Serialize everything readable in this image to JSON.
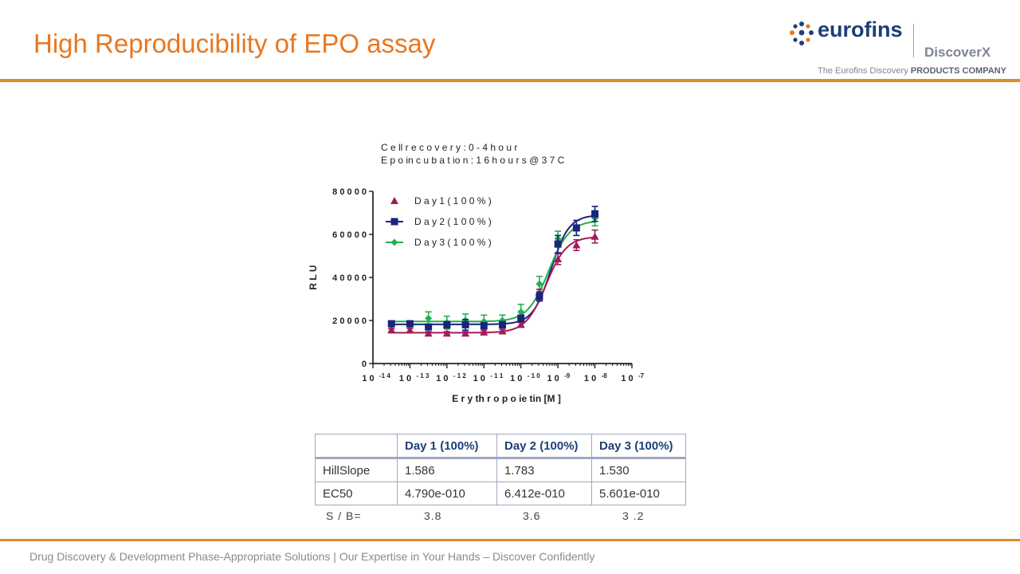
{
  "slide": {
    "title": "High Reproducibility of EPO assay",
    "footer": "Drug Discovery & Development Phase-Appropriate Solutions | Our Expertise in Your Hands – Discover Confidently"
  },
  "logo": {
    "wordmark": "eurofins",
    "sub": "DiscoverX",
    "tagline_prefix": "The Eurofins Discovery ",
    "tagline_bold": "PRODUCTS COMPANY",
    "colors": {
      "blue": "#1d3f7a",
      "grey": "#7e8593"
    }
  },
  "chart_data": {
    "type": "scatter",
    "annotations": [
      "C e ll r e c o v e r y :  0 - 4  h o u r",
      "E p o  in c u b a t io n :  1 6 h o u r s  @  3 7 C"
    ],
    "xlabel": "E r y th r o p o ie tin  [M ]",
    "ylabel": "R L U",
    "xscale": "log",
    "xlim": [
      1e-14,
      1e-07
    ],
    "ylim": [
      0,
      80000
    ],
    "yticks": [
      0,
      20000,
      40000,
      60000,
      80000
    ],
    "ytick_labels": [
      "0",
      "2 0 0 0 0",
      "4 0 0 0 0",
      "6 0 0 0 0",
      "8 0 0 0 0"
    ],
    "xtick_labels": [
      {
        "base": "1 0",
        "exp": "-1 4"
      },
      {
        "base": "1 0",
        "exp": "- 1 3"
      },
      {
        "base": "1 0",
        "exp": "- 1 2"
      },
      {
        "base": "1 0",
        "exp": "- 1 1"
      },
      {
        "base": "1 0",
        "exp": "- 1 0"
      },
      {
        "base": "1 0",
        "exp": "-9"
      },
      {
        "base": "1 0",
        "exp": "-8"
      },
      {
        "base": "1 0",
        "exp": "-7"
      }
    ],
    "legend_position": "top-left",
    "series": [
      {
        "name": "D a y 1 ( 1 0 0 % )",
        "marker": "triangle",
        "color": "#a01b5c",
        "line": false,
        "x": [
          -13.3,
          -12.8,
          -12.3,
          -11.8,
          -11.3,
          -10.8,
          -10.3,
          -9.8,
          -9.3,
          -8.8,
          -8.3,
          -7.8,
          -7.3,
          -7.0
        ],
        "y": [
          null,
          null,
          15500,
          15000,
          14500,
          14000,
          14000,
          14500,
          18000,
          33000,
          48000,
          54500,
          58500,
          null
        ],
        "err": [
          null,
          null,
          800,
          800,
          800,
          800,
          800,
          800,
          1000,
          1500,
          2500,
          2500,
          3000,
          null
        ]
      },
      {
        "name": "D a y 2 ( 1 0 0 % )",
        "marker": "square",
        "color": "#1a237e",
        "line": true,
        "x": [],
        "y": [],
        "err": []
      },
      {
        "name": "D a y 3 ( 1 0 0 % )",
        "marker": "diamond",
        "color": "#22b14c",
        "line": true,
        "x": [],
        "y": [],
        "err": []
      }
    ],
    "points": {
      "x": [
        -13.5,
        -13.0,
        -12.5,
        -12.0,
        -11.5,
        -11.0,
        -10.5,
        -10.0,
        -9.5,
        -9.0,
        -8.5,
        -8.0
      ],
      "day1": [
        15500,
        15500,
        14000,
        14000,
        14000,
        14500,
        15000,
        18000,
        33000,
        48500,
        55000,
        59000
      ],
      "day1_err": [
        800,
        800,
        800,
        800,
        800,
        800,
        800,
        1000,
        1500,
        2500,
        2500,
        3000
      ],
      "day2": [
        18500,
        18500,
        17000,
        18000,
        18000,
        17500,
        18000,
        21000,
        31000,
        55500,
        63000,
        69500
      ],
      "day2_err": [
        900,
        900,
        900,
        1500,
        2500,
        1500,
        1500,
        1500,
        2000,
        4000,
        3500,
        3500
      ],
      "day3": [
        17500,
        18000,
        21000,
        19000,
        20000,
        19500,
        20000,
        24000,
        37000,
        58000,
        63000,
        67500
      ],
      "day3_err": [
        1500,
        1500,
        3000,
        3000,
        3000,
        3000,
        2500,
        3500,
        3500,
        3500,
        3500,
        3500
      ]
    },
    "fits": {
      "day1": {
        "bottom": 14300,
        "top": 59000,
        "logEC50": -9.32,
        "hill": 1.586
      },
      "day2": {
        "bottom": 18200,
        "top": 69000,
        "logEC50": -9.19,
        "hill": 1.783
      },
      "day3": {
        "bottom": 19500,
        "top": 66500,
        "logEC50": -9.25,
        "hill": 1.53
      }
    }
  },
  "table": {
    "headers": [
      "",
      "Day 1 (100%)",
      "Day 2 (100%)",
      "Day 3 (100%)"
    ],
    "rows": [
      [
        "HillSlope",
        "1.586",
        "1.783",
        "1.530"
      ],
      [
        "EC50",
        "4.790e-010",
        "6.412e-010",
        "5.601e-010"
      ]
    ],
    "sb": {
      "label": "S / B=",
      "values": [
        "3.8",
        "3.6",
        "3 .2"
      ]
    }
  }
}
